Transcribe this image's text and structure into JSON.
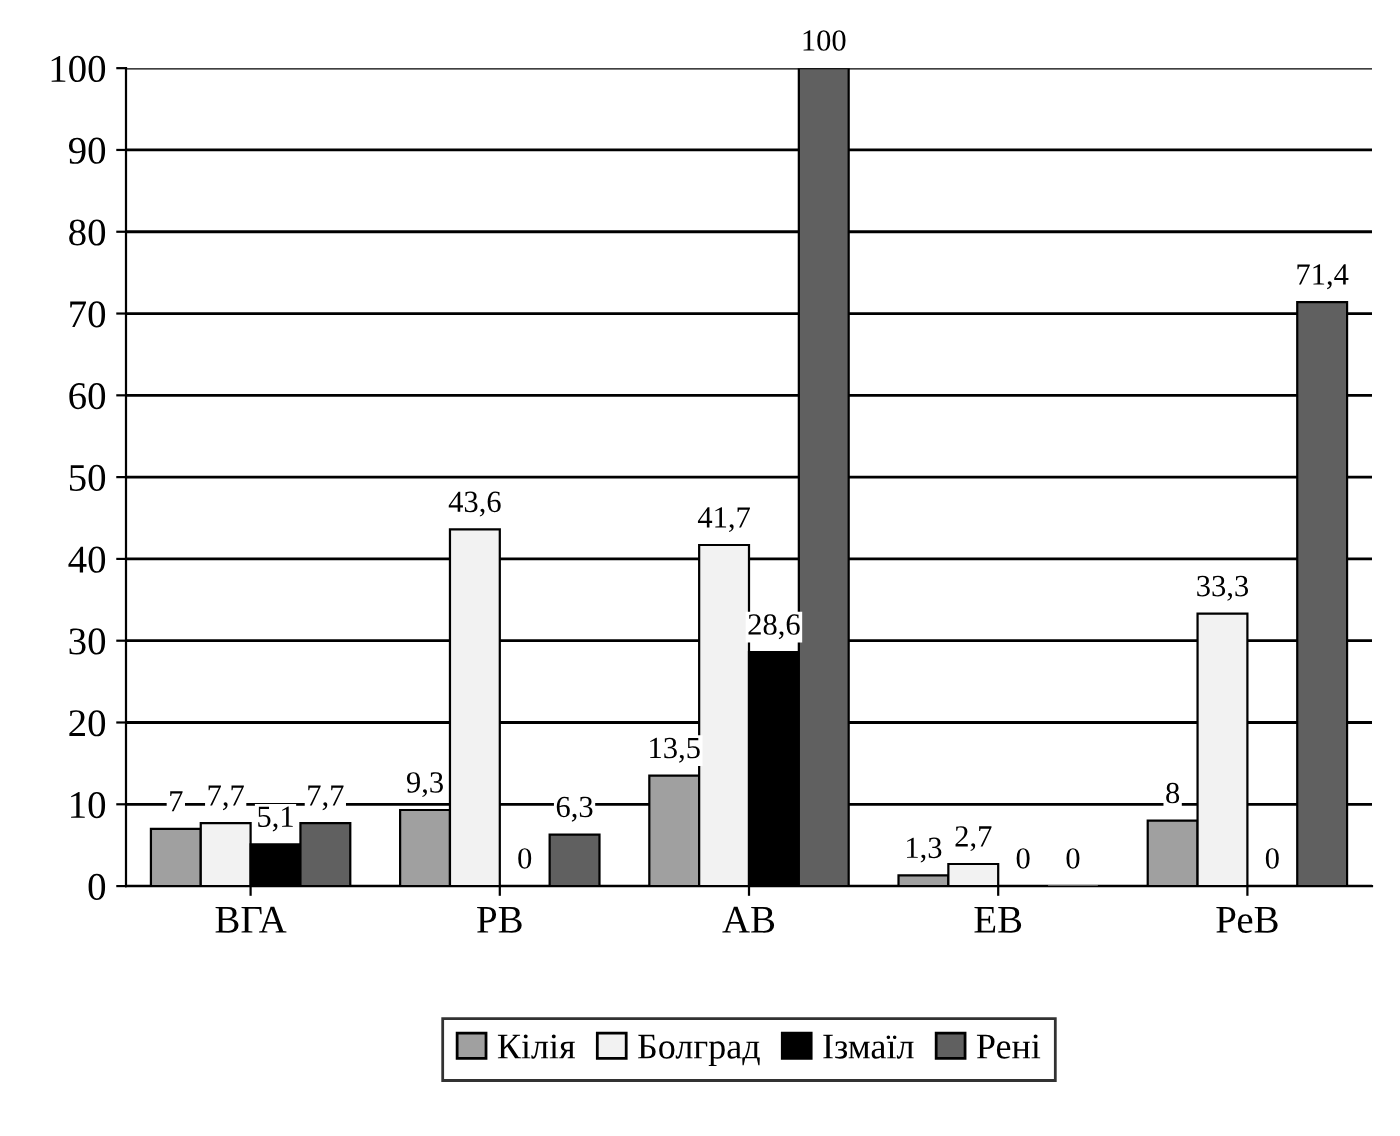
{
  "chart_data": {
    "type": "bar",
    "categories": [
      "ВГА",
      "РВ",
      "АВ",
      "ЕВ",
      "РеВ"
    ],
    "series": [
      {
        "name": "Кілія",
        "color": "#a0a0a0",
        "values": [
          7,
          9.3,
          13.5,
          1.3,
          8
        ],
        "value_labels": [
          "7",
          "9,3",
          "13,5",
          "1,3",
          "8"
        ]
      },
      {
        "name": "Болград",
        "color": "#f2f2f2",
        "values": [
          7.7,
          43.6,
          41.7,
          2.7,
          33.3
        ],
        "value_labels": [
          "7,7",
          "43,6",
          "41,7",
          "2,7",
          "33,3"
        ]
      },
      {
        "name": "Ізмаїл",
        "color": "#000000",
        "values": [
          5.1,
          0,
          28.6,
          0,
          0
        ],
        "value_labels": [
          "5,1",
          "0",
          "28,6",
          "0",
          "0"
        ]
      },
      {
        "name": "Рені",
        "color": "#606060",
        "values": [
          7.7,
          6.3,
          100,
          0,
          71.4
        ],
        "value_labels": [
          "7,7",
          "6,3",
          "100",
          "0",
          "71,4"
        ]
      }
    ],
    "ylim": [
      0,
      100
    ],
    "yticks": [
      0,
      10,
      20,
      30,
      40,
      50,
      60,
      70,
      80,
      90,
      100
    ],
    "grid": "y",
    "legend": "bottom"
  }
}
